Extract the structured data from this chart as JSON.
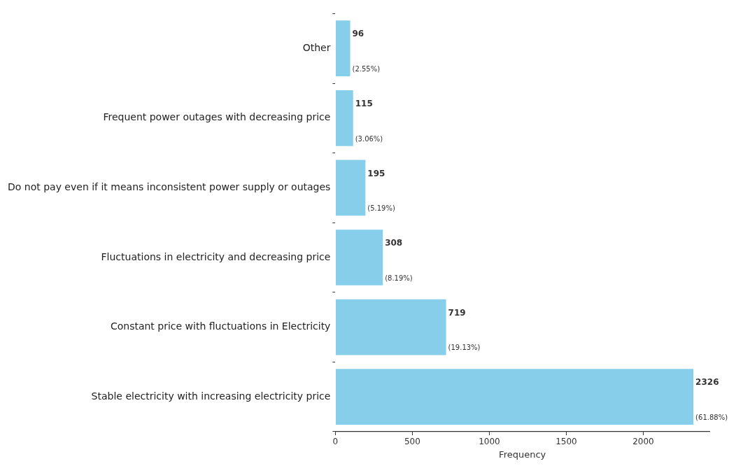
{
  "chart_data": {
    "type": "bar",
    "orientation": "horizontal",
    "xlabel": "Frequency",
    "categories": [
      "Other",
      "Frequent power outages with decreasing price",
      "Do not pay even if it means inconsistent power supply or outages",
      "Fluctuations in electricity and decreasing price",
      "Constant price with fluctuations in Electricity",
      "Stable electricity with increasing electricity price"
    ],
    "values": [
      96,
      115,
      195,
      308,
      719,
      2326
    ],
    "value_labels": [
      "96\n(2.55%)",
      "115\n(3.06%)",
      "195\n(5.19%)",
      "308\n(8.19%)",
      "719\n(19.13%)",
      "2326\n(61.88%)"
    ],
    "color": "#87ceeb",
    "xlim": [
      0,
      2430
    ],
    "xticks": [
      0,
      500,
      1000,
      1500,
      2000
    ],
    "grid": false,
    "legend": false
  }
}
